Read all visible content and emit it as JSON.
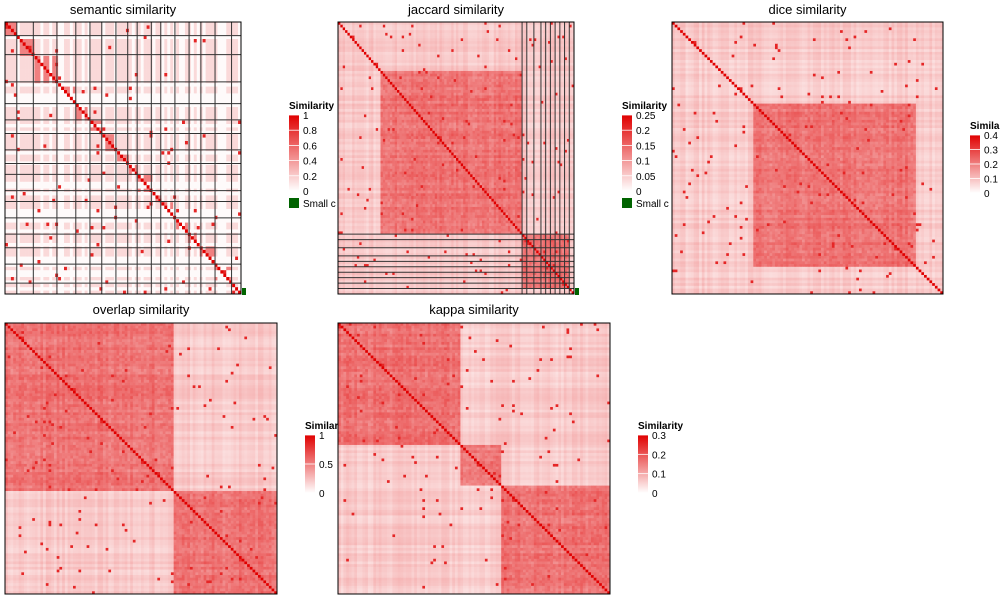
{
  "colors": {
    "low": "#ffffff",
    "high": "#e00000",
    "box": "#333333",
    "small_legend": "#006400",
    "frame": "#000000"
  },
  "chart_data": [
    {
      "type": "heatmap",
      "title": "semantic similarity",
      "legend": {
        "title": "Similarity",
        "ticks": [
          "1",
          "0.8",
          "0.6",
          "0.4",
          "0.2",
          "0"
        ],
        "extra_label": "Small c",
        "placement": "right"
      },
      "color_range": [
        0,
        1
      ],
      "n": 80,
      "cluster_boundaries": [
        0.05,
        0.12,
        0.22,
        0.3,
        0.36,
        0.41,
        0.47,
        0.52,
        0.56,
        0.62,
        0.66,
        0.72,
        0.78,
        0.83,
        0.89,
        0.96
      ],
      "diagonal_blocks": [
        [
          0,
          0.05
        ],
        [
          0.05,
          0.12
        ],
        [
          0.12,
          0.22
        ],
        [
          0.22,
          0.3
        ],
        [
          0.3,
          0.36
        ],
        [
          0.36,
          0.41
        ],
        [
          0.41,
          0.47
        ],
        [
          0.47,
          0.52
        ],
        [
          0.52,
          0.56
        ],
        [
          0.56,
          0.62
        ],
        [
          0.62,
          0.66
        ],
        [
          0.66,
          0.72
        ],
        [
          0.72,
          0.78
        ],
        [
          0.78,
          0.83
        ],
        [
          0.83,
          0.89
        ],
        [
          0.89,
          0.96
        ]
      ],
      "has_small_cluster_marker": true
    },
    {
      "type": "heatmap",
      "title": "jaccard similarity",
      "legend": {
        "title": "Similarity",
        "ticks": [
          "0.25",
          "0.2",
          "0.15",
          "0.1",
          "0.05",
          "0"
        ],
        "extra_label": "Small c",
        "placement": "right"
      },
      "color_range": [
        0,
        0.25
      ],
      "n": 100,
      "cluster_boundaries": [
        0.78,
        0.8,
        0.83,
        0.86,
        0.88,
        0.9,
        0.92,
        0.94,
        0.96,
        0.98
      ],
      "diagonal_blocks": [
        [
          0.18,
          0.78
        ],
        [
          0.78,
          0.98
        ]
      ],
      "has_small_cluster_marker": true
    },
    {
      "type": "heatmap",
      "title": "dice similarity",
      "legend": {
        "title": "Similarity",
        "ticks": [
          "0.4",
          "0.3",
          "0.2",
          "0.1",
          "0"
        ],
        "placement": "right"
      },
      "color_range": [
        0,
        0.4
      ],
      "n": 100,
      "cluster_boundaries": [],
      "diagonal_blocks": [
        [
          0.3,
          0.9
        ]
      ],
      "has_small_cluster_marker": false
    },
    {
      "type": "heatmap",
      "title": "overlap similarity",
      "legend": {
        "title": "Similarity",
        "ticks": [
          "1",
          "0.5",
          "0"
        ],
        "placement": "right"
      },
      "color_range": [
        0,
        1
      ],
      "n": 100,
      "cluster_boundaries": [],
      "diagonal_blocks": [
        [
          0.0,
          0.62
        ],
        [
          0.62,
          1.0
        ]
      ],
      "has_small_cluster_marker": false
    },
    {
      "type": "heatmap",
      "title": "kappa similarity",
      "legend": {
        "title": "Similarity",
        "ticks": [
          "0.3",
          "0.2",
          "0.1",
          "0"
        ],
        "placement": "right"
      },
      "color_range": [
        0,
        0.3
      ],
      "n": 100,
      "cluster_boundaries": [],
      "diagonal_blocks": [
        [
          0.0,
          0.45
        ],
        [
          0.45,
          0.6
        ],
        [
          0.6,
          1.0
        ]
      ],
      "has_small_cluster_marker": false
    }
  ]
}
